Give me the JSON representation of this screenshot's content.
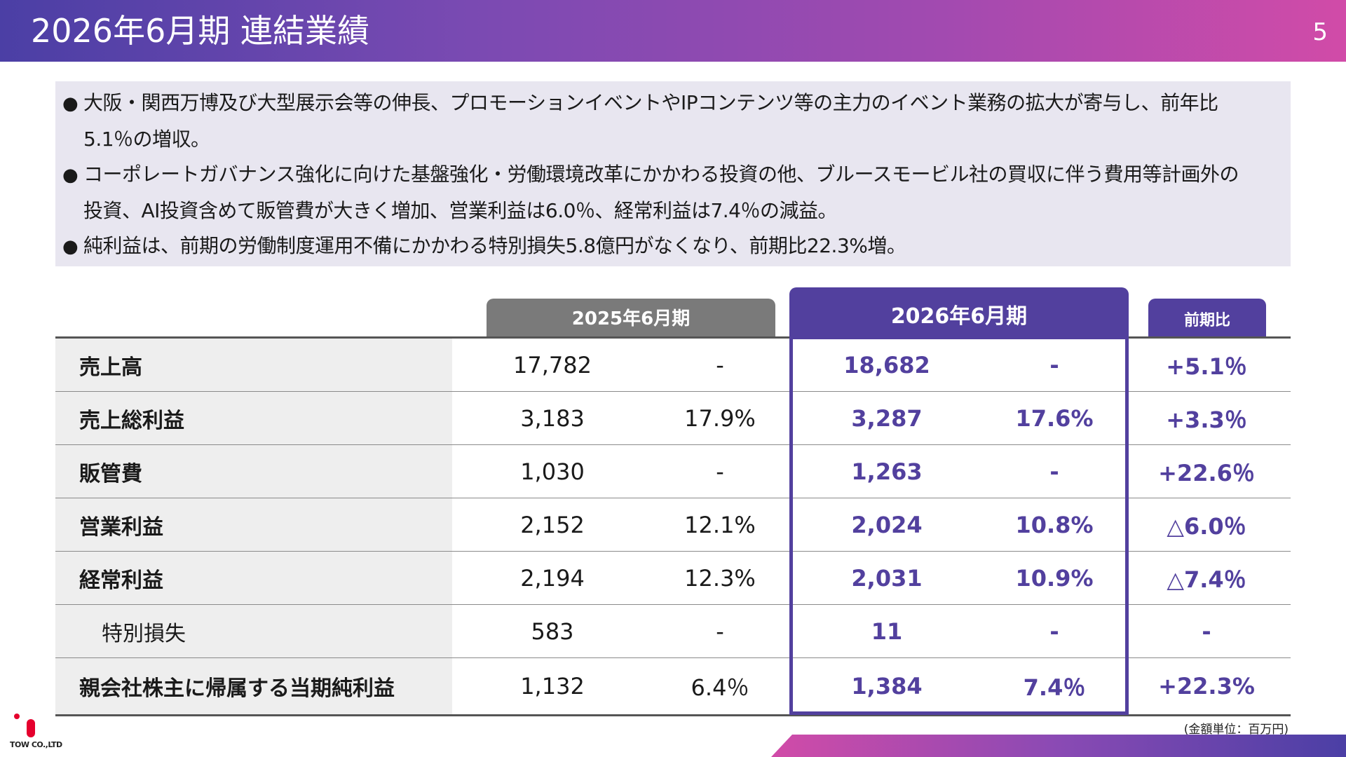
{
  "header": {
    "title": "2026年6月期 連結業績",
    "page_number": "5"
  },
  "summary": {
    "bullet_symbol": "●",
    "lines": [
      "大阪・関西万博及び大型展示会等の伸長、プロモーションイベントやIPコンテンツ等の主力のイベント業務の拡大が寄与し、前年比",
      "5.1％の増収。",
      "コーポレートガバナンス強化に向けた基盤強化・労働環境改革にかかわる投資の他、ブルースモービル社の買収に伴う費用等計画外の",
      "投資、AI投資含めて販管費が大きく増加、営業利益は6.0％、経常利益は7.4％の減益。",
      "純利益は、前期の労働制度運用不備にかかわる特別損失5.8億円がなくなり、前期比22.3%増。"
    ]
  },
  "table": {
    "headers": {
      "prev": "2025年6月期",
      "curr": "2026年6月期",
      "ratio": "前期比"
    },
    "rows": [
      {
        "label": "売上高",
        "prev": "17,782",
        "prev_pct": "-",
        "curr": "18,682",
        "curr_pct": "-",
        "ratio": "+5.1％"
      },
      {
        "label": "売上総利益",
        "prev": "3,183",
        "prev_pct": "17.9%",
        "curr": "3,287",
        "curr_pct": "17.6%",
        "ratio": "+3.3％"
      },
      {
        "label": "販管費",
        "prev": "1,030",
        "prev_pct": "-",
        "curr": "1,263",
        "curr_pct": "-",
        "ratio": "+22.6％"
      },
      {
        "label": "営業利益",
        "prev": "2,152",
        "prev_pct": "12.1%",
        "curr": "2,024",
        "curr_pct": "10.8%",
        "ratio": "△6.0％"
      },
      {
        "label": "経常利益",
        "prev": "2,194",
        "prev_pct": "12.3%",
        "curr": "2,031",
        "curr_pct": "10.9%",
        "ratio": "△7.4％"
      },
      {
        "label": "特別損失",
        "prev": "583",
        "prev_pct": "-",
        "curr": "11",
        "curr_pct": "-",
        "ratio": "-"
      },
      {
        "label": "親会社株主に帰属する当期純利益",
        "prev": "1,132",
        "prev_pct": "6.4％",
        "curr": "1,384",
        "curr_pct": "7.4％",
        "ratio": "+22.3%"
      }
    ],
    "unit_note": "(金額単位：百万円)"
  },
  "logo": {
    "text": "TOW CO.,LTD"
  },
  "colors": {
    "accent": "#52409e",
    "prev_header": "#7a7a7a",
    "brand_red": "#e5002d"
  }
}
